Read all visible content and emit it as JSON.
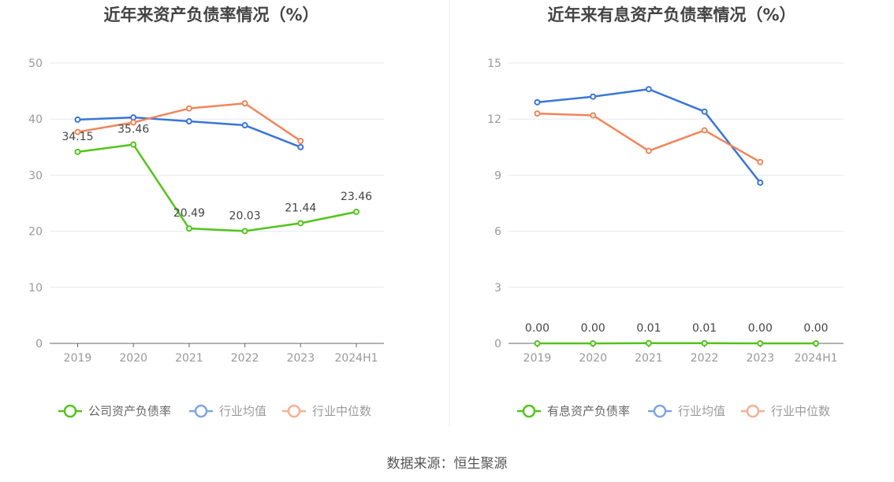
{
  "colors": {
    "company": "#52c41a",
    "industry_avg": "#3a75d8",
    "industry_median": "#f0855a",
    "grid": "#e6e8ee",
    "axis": "#666666"
  },
  "chart_data": [
    {
      "type": "line",
      "title": "近年来资产负债率情况（%）",
      "categories": [
        "2019",
        "2020",
        "2021",
        "2022",
        "2023",
        "2024H1"
      ],
      "ylim": [
        0,
        50
      ],
      "yticks": [
        0,
        10,
        20,
        30,
        40,
        50
      ],
      "series": [
        {
          "name": "公司资产负债率",
          "color_key": "company",
          "values": [
            34.15,
            35.46,
            20.49,
            20.03,
            21.44,
            23.46
          ],
          "labels": [
            "34.15",
            "35.46",
            "20.49",
            "20.03",
            "21.44",
            "23.46"
          ]
        },
        {
          "name": "行业均值",
          "color_key": "industry_avg",
          "values": [
            39.9,
            40.3,
            39.6,
            38.9,
            35.0,
            null
          ]
        },
        {
          "name": "行业中位数",
          "color_key": "industry_median",
          "values": [
            37.7,
            39.4,
            41.9,
            42.8,
            36.1,
            null
          ]
        }
      ]
    },
    {
      "type": "line",
      "title": "近年来有息资产负债率情况（%）",
      "categories": [
        "2019",
        "2020",
        "2021",
        "2022",
        "2023",
        "2024H1"
      ],
      "ylim": [
        0,
        15
      ],
      "yticks": [
        0,
        3,
        6,
        9,
        12,
        15
      ],
      "series": [
        {
          "name": "有息资产负债率",
          "color_key": "company",
          "values": [
            0.0,
            0.0,
            0.01,
            0.01,
            0.0,
            0.0
          ],
          "labels": [
            "0.00",
            "0.00",
            "0.01",
            "0.01",
            "0.00",
            "0.00"
          ]
        },
        {
          "name": "行业均值",
          "color_key": "industry_avg",
          "values": [
            12.9,
            13.2,
            13.6,
            12.4,
            8.6,
            null
          ]
        },
        {
          "name": "行业中位数",
          "color_key": "industry_median",
          "values": [
            12.3,
            12.2,
            10.3,
            11.4,
            9.7,
            null
          ]
        }
      ]
    }
  ],
  "source_text": "数据来源：恒生聚源"
}
